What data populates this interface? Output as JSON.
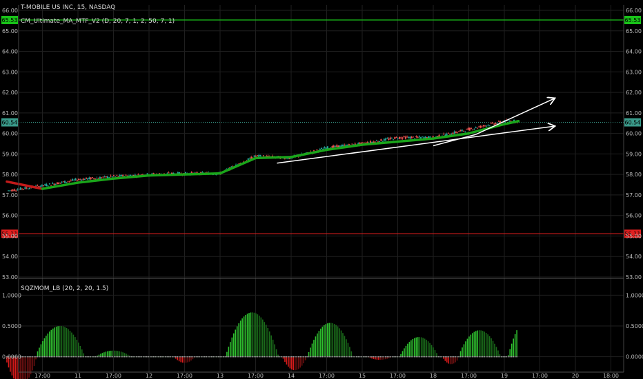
{
  "header": {
    "symbol_line": "T-MOBILE US INC, 15, NASDAQ",
    "indicator_line": "CM_Ultimate_MA_MTF_V2 (D, 20, 7, 1, 2, 50, 7, 1)"
  },
  "lower_pane": {
    "indicator_line": "SQZMOM_LB (20, 2, 20, 1.5)"
  },
  "colors": {
    "background": "#000000",
    "grid": "#1f1f1f",
    "up_candle": "#26a69a",
    "down_candle": "#ef5350",
    "ma_up": "#1aa51a",
    "ma_down": "#c21a1a",
    "resistance": "#19c219",
    "support": "#e01f1f",
    "last_price": "#3a9a8a",
    "trendline": "#ffffff",
    "mom_up_strong": "#2fbf2f",
    "mom_up_weak": "#1a6a1a",
    "mom_down_strong": "#d81b1b",
    "mom_down_weak": "#6a1010"
  },
  "chart_data": [
    {
      "type": "candlestick",
      "title": "T-MOBILE US INC, 15, NASDAQ",
      "ylim": [
        53,
        66
      ],
      "y_ticks": [
        "66.00",
        "65.00",
        "64.00",
        "63.00",
        "62.00",
        "61.00",
        "60.00",
        "59.00",
        "58.00",
        "57.00",
        "56.00",
        "55.00",
        "54.00",
        "53.00"
      ],
      "x_ticks": [
        "17:00",
        "11",
        "17:00",
        "12",
        "17:00",
        "13",
        "17:00",
        "14",
        "17:00",
        "15",
        "17:00",
        "18",
        "17:00",
        "19",
        "17:00",
        "20",
        "18:00"
      ],
      "close_path": {
        "x_session": [
          0,
          0.5,
          1,
          1.5,
          2,
          2.5,
          3,
          3.5,
          4,
          4.5,
          5,
          5.5,
          6,
          6.5,
          7,
          7.2
        ],
        "y": [
          57.2,
          57.45,
          57.75,
          57.9,
          58.0,
          58.05,
          58.05,
          58.9,
          58.8,
          59.3,
          59.5,
          59.8,
          59.8,
          60.2,
          60.6,
          60.6
        ]
      },
      "ma_path": {
        "x_session": [
          0,
          0.5,
          1,
          1.5,
          2,
          2.5,
          3,
          3.5,
          4,
          4.5,
          5,
          5.5,
          6,
          6.5,
          7,
          7.2
        ],
        "y": [
          57.65,
          57.3,
          57.6,
          57.8,
          57.95,
          58.0,
          58.05,
          58.8,
          58.85,
          59.2,
          59.45,
          59.6,
          59.75,
          60.0,
          60.45,
          60.6
        ]
      },
      "horizontal_levels": [
        {
          "label": "65.53",
          "value": 65.53,
          "color_key": "resistance"
        },
        {
          "label": "60.54",
          "value": 60.54,
          "color_key": "last_price"
        },
        {
          "label": "55.11",
          "value": 55.11,
          "color_key": "support"
        }
      ],
      "trendlines": [
        {
          "from": [
            3.8,
            58.55
          ],
          "to": [
            7.7,
            60.35
          ],
          "arrow": true
        },
        {
          "from": [
            6.6,
            59.95
          ],
          "to": [
            7.7,
            61.7
          ],
          "arrow": true
        },
        {
          "from": [
            6.0,
            59.4
          ],
          "to": [
            6.6,
            59.95
          ],
          "arrow": false
        }
      ]
    },
    {
      "type": "bar",
      "title": "SQZMOM_LB (20, 2, 20, 1.5)",
      "ylim": [
        -0.25,
        1.25
      ],
      "y_ticks": [
        "1.0000",
        "0.5000",
        "0.0000"
      ],
      "bumps_session": [
        {
          "center": 0.2,
          "peak": -0.45,
          "width": 0.45
        },
        {
          "center": 0.75,
          "peak": 0.5,
          "width": 0.7
        },
        {
          "center": 1.5,
          "peak": 0.1,
          "width": 0.5
        },
        {
          "center": 2.5,
          "peak": -0.1,
          "width": 0.3
        },
        {
          "center": 3.45,
          "peak": 0.72,
          "width": 0.75
        },
        {
          "center": 4.05,
          "peak": -0.22,
          "width": 0.35
        },
        {
          "center": 4.55,
          "peak": 0.55,
          "width": 0.65
        },
        {
          "center": 5.25,
          "peak": -0.05,
          "width": 0.35
        },
        {
          "center": 5.8,
          "peak": 0.32,
          "width": 0.55
        },
        {
          "center": 6.25,
          "peak": -0.12,
          "width": 0.25
        },
        {
          "center": 6.65,
          "peak": 0.43,
          "width": 0.6
        },
        {
          "center": 7.35,
          "peak": 0.65,
          "width": 0.6
        }
      ]
    }
  ]
}
